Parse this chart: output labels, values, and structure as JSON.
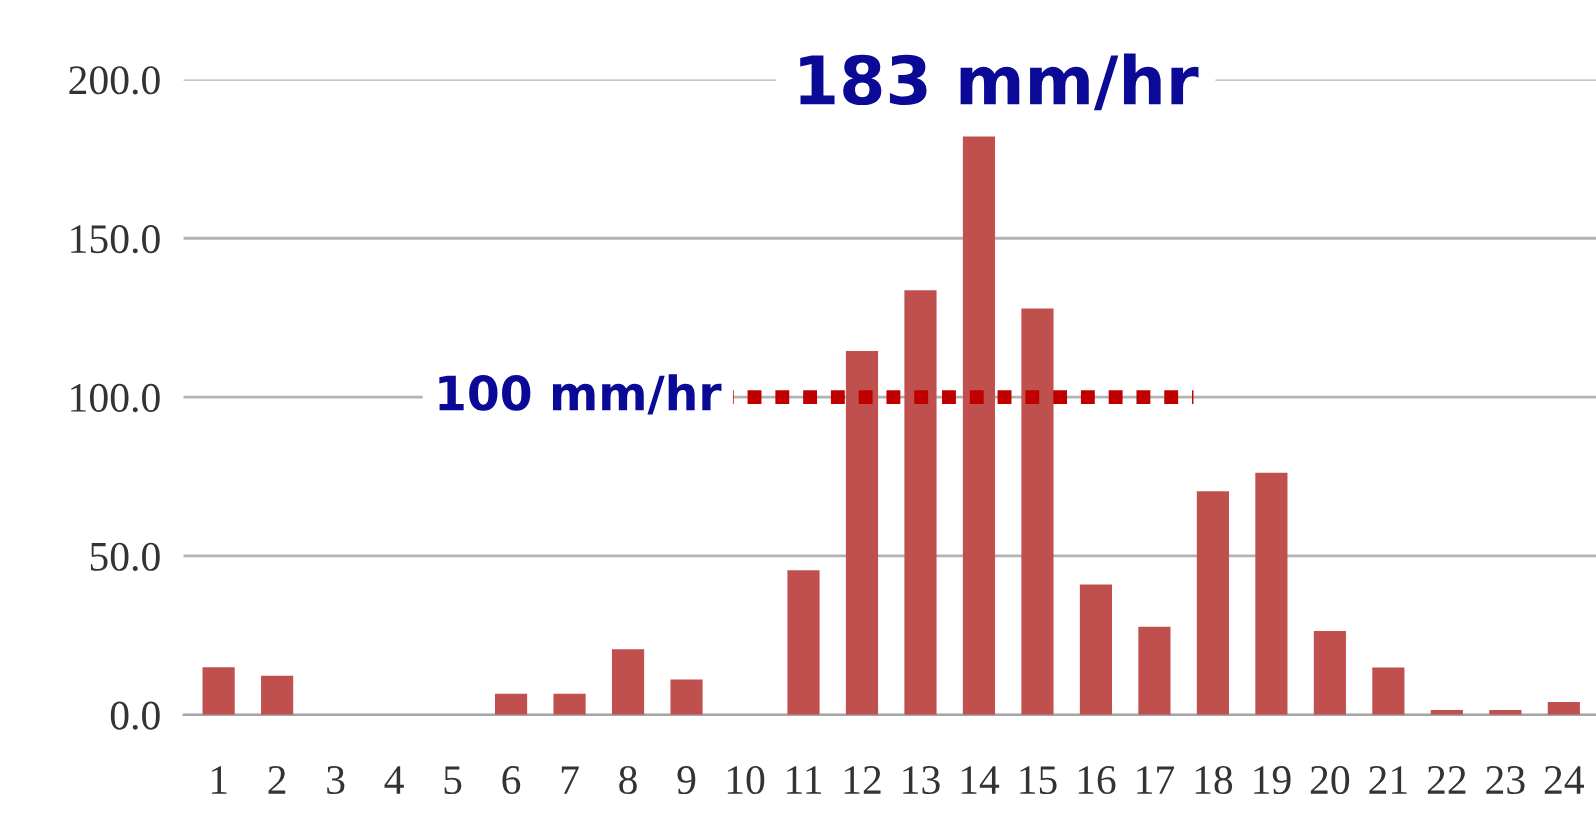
{
  "chart_data": {
    "type": "bar",
    "categories": [
      "1",
      "2",
      "3",
      "4",
      "5",
      "6",
      "7",
      "8",
      "9",
      "10",
      "11",
      "12",
      "13",
      "14",
      "15",
      "16",
      "17",
      "18",
      "19",
      "20",
      "21",
      "22",
      "23",
      "24"
    ],
    "values": [
      15,
      12.3,
      0,
      0,
      0,
      6.6,
      6.6,
      20.6,
      11.1,
      0,
      45.5,
      114.5,
      133.6,
      182,
      127.9,
      41,
      27.7,
      70.4,
      76.2,
      26.4,
      14.9,
      1.5,
      1.5,
      4
    ],
    "color": "#c0504d",
    "ylim": [
      0,
      200
    ],
    "yticks": [
      {
        "value": 0,
        "label": "0.0"
      },
      {
        "value": 50,
        "label": "50.0"
      },
      {
        "value": 100,
        "label": "100.0"
      },
      {
        "value": 150,
        "label": "150.0"
      },
      {
        "value": 200,
        "label": "200.0"
      }
    ],
    "grid": "y",
    "annotations": [
      "183 mm/hr"
    ],
    "ref_lines": [
      {
        "axis": "y",
        "value": 100,
        "label": "100 mm/hr",
        "color": "#c00000",
        "line_style": "dotted"
      }
    ]
  }
}
